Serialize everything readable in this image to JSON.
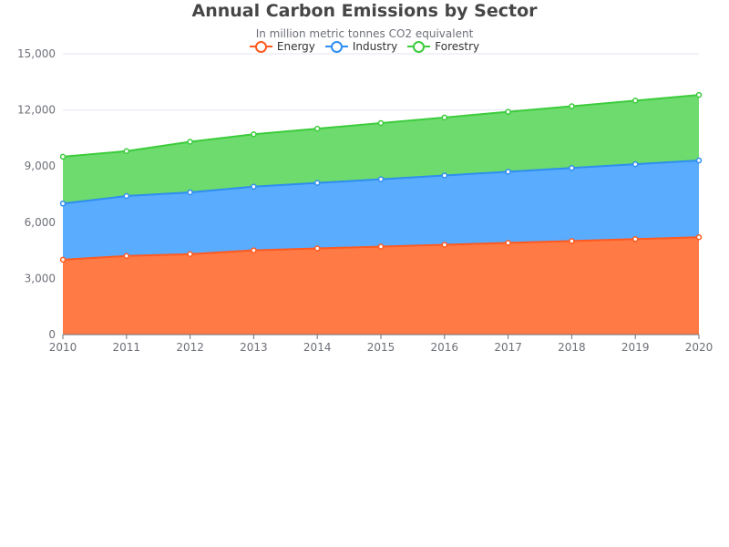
{
  "colors": {
    "energy": "#ff5a1f",
    "industry": "#2f8ef0",
    "forestry": "#3ccc3c",
    "energy_fill": "#ff7a45",
    "industry_fill": "#5aacff",
    "forestry_fill": "#6ddb6d",
    "axis_label": "#6e7079",
    "grid": "#e0e6f1"
  },
  "chart_data": {
    "type": "area",
    "stacked": true,
    "title": "Annual Carbon Emissions by Sector",
    "subtitle": "In million metric tonnes CO2 equivalent",
    "xlabel": "",
    "ylabel": "",
    "x": [
      "2010",
      "2011",
      "2012",
      "2013",
      "2014",
      "2015",
      "2016",
      "2017",
      "2018",
      "2019",
      "2020"
    ],
    "ylim": [
      0,
      15000
    ],
    "yticks": [
      "0",
      "3,000",
      "6,000",
      "9,000",
      "12,000",
      "15,000"
    ],
    "ytick_values": [
      0,
      3000,
      6000,
      9000,
      12000,
      15000
    ],
    "grid": true,
    "legend_position": "top-center",
    "series": [
      {
        "name": "Energy",
        "values": [
          4000,
          4200,
          4300,
          4500,
          4600,
          4700,
          4800,
          4900,
          5000,
          5100,
          5200
        ]
      },
      {
        "name": "Industry",
        "values": [
          3000,
          3200,
          3300,
          3400,
          3500,
          3600,
          3700,
          3800,
          3900,
          4000,
          4100
        ]
      },
      {
        "name": "Forestry",
        "values": [
          2500,
          2400,
          2700,
          2800,
          2900,
          3000,
          3100,
          3200,
          3300,
          3400,
          3500
        ]
      }
    ]
  }
}
